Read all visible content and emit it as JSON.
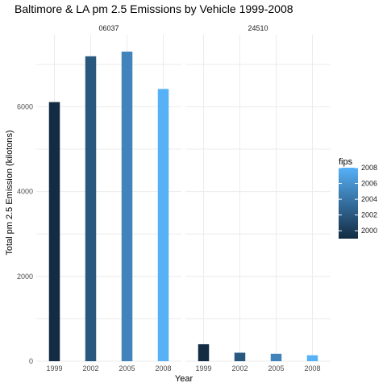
{
  "chart_data": {
    "type": "bar",
    "title": "Baltimore & LA pm 2.5 Emissions by Vehicle 1999-2008",
    "xlabel": "Year",
    "ylabel": "Total pm 2.5 Emission (kilotons)",
    "categories": [
      "1999",
      "2002",
      "2005",
      "2008"
    ],
    "ylim": [
      0,
      7700
    ],
    "yticks": [
      0,
      2000,
      4000,
      6000
    ],
    "grid": true,
    "legend": {
      "title": "fips",
      "placement": "right",
      "type": "colorbar",
      "range": [
        1999,
        2008
      ],
      "ticks": [
        "2000",
        "2002",
        "2004",
        "2006",
        "2008"
      ],
      "color_low": "#132b43",
      "color_high": "#56b1f7"
    },
    "panels": [
      {
        "strip": "06037",
        "values": [
          6110,
          7190,
          7300,
          6420
        ]
      },
      {
        "strip": "24510",
        "values": [
          400,
          200,
          175,
          140
        ]
      }
    ]
  }
}
